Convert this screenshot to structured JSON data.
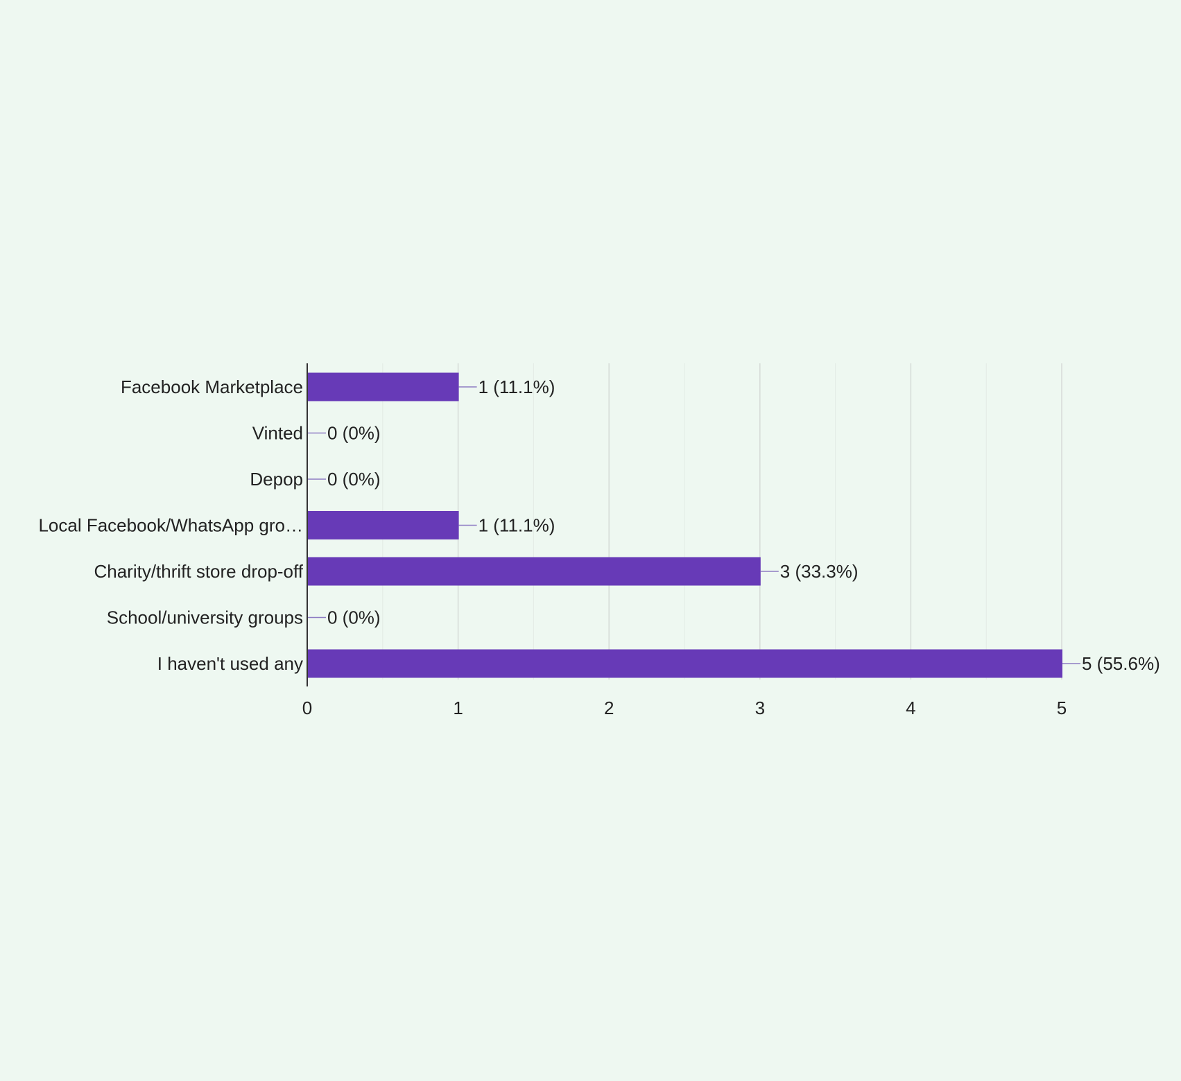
{
  "chart_data": {
    "type": "bar",
    "orientation": "horizontal",
    "categories": [
      "Facebook Marketplace",
      "Vinted",
      "Depop",
      "Local Facebook/WhatsApp gro…",
      "Charity/thrift store drop-off",
      "School/university groups",
      "I haven't used any"
    ],
    "values": [
      1,
      0,
      0,
      1,
      3,
      0,
      5
    ],
    "data_labels": [
      "1 (11.1%)",
      "0 (0%)",
      "0 (0%)",
      "1 (11.1%)",
      "3 (33.3%)",
      "0 (0%)",
      "5 (55.6%)"
    ],
    "x_ticks": [
      0,
      1,
      2,
      3,
      4,
      5
    ],
    "xlim": [
      0,
      5
    ],
    "grid": true,
    "legend": "none",
    "colors": {
      "bar": "#673ab7",
      "background": "#eef8f1",
      "gridline": "#d5dbd7",
      "axis": "#333333",
      "text": "#222222",
      "connector": "#8e7cc3"
    }
  }
}
